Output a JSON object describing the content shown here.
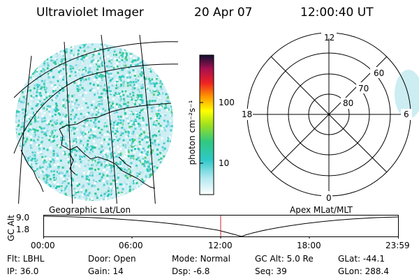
{
  "header": {
    "title": "Ultraviolet Imager",
    "date": "20 Apr 07",
    "time": "12:00:40 UT"
  },
  "colorbar": {
    "unit_label": "photon cm⁻²s⁻¹",
    "ticks": [
      "100",
      "10"
    ]
  },
  "left_panel": {
    "label": "Geographic Lat/Lon"
  },
  "right_panel": {
    "label": "Apex MLat/MLT",
    "mlt_labels": {
      "top": "12",
      "bottom": "0",
      "left": "18",
      "right": "6"
    },
    "lat_labels": [
      "60",
      "70",
      "80"
    ]
  },
  "altitude_plot": {
    "ylabel": "GC Alt",
    "yticks": [
      "9.0",
      "1.8"
    ],
    "xticks": [
      "00:00",
      "06:00",
      "12:00",
      "18:00",
      "23:59"
    ],
    "colors": {
      "current_time_marker": "#cc2222"
    }
  },
  "info": {
    "row1": [
      {
        "label": "Flt:",
        "value": "LBHL"
      },
      {
        "label": "Door:",
        "value": "Open"
      },
      {
        "label": "Mode:",
        "value": "Normal"
      },
      {
        "label": "GC Alt:",
        "value": "5.0 Re"
      },
      {
        "label": "GLat:",
        "value": "-44.1"
      }
    ],
    "row2": [
      {
        "label": "IP:",
        "value": "36.0"
      },
      {
        "label": "Gain:",
        "value": "14"
      },
      {
        "label": "Dsp:",
        "value": "-6.8"
      },
      {
        "label": "Seq:",
        "value": "39"
      },
      {
        "label": "GLon:",
        "value": "288.4"
      }
    ]
  }
}
